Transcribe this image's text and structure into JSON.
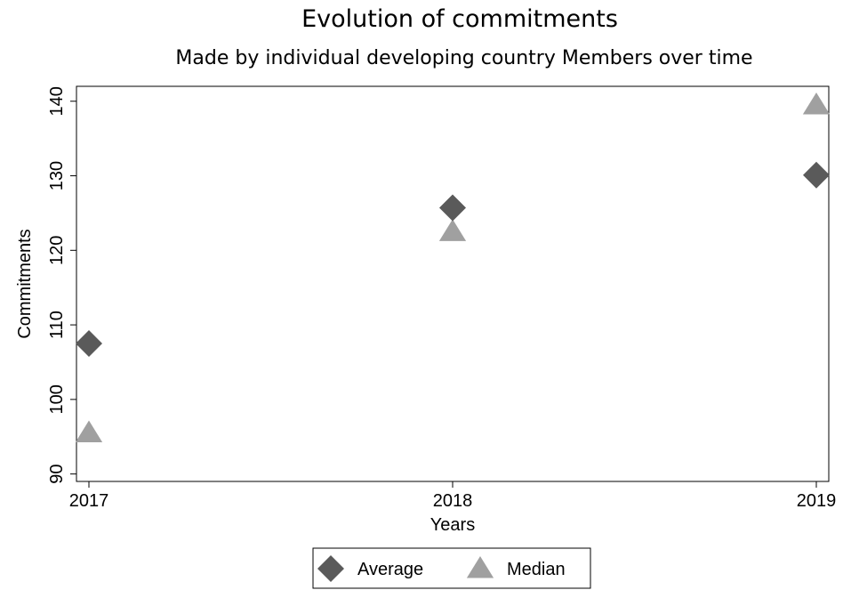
{
  "chart_data": {
    "type": "scatter",
    "title": "Evolution of commitments",
    "subtitle": "Made by individual developing country Members over time",
    "xlabel": "Years",
    "ylabel": "Commitments",
    "x": [
      2017,
      2018,
      2019
    ],
    "x_tick_labels": [
      "2017",
      "2018",
      "2019"
    ],
    "y_ticks": [
      90,
      100,
      110,
      120,
      130,
      140
    ],
    "y_tick_labels": [
      "90",
      "100",
      "110",
      "120",
      "130",
      "140"
    ],
    "xlim": [
      2017,
      2019
    ],
    "ylim": [
      89,
      142
    ],
    "grid": false,
    "legend_position": "bottom-center",
    "series": [
      {
        "name": "Average",
        "marker": "diamond",
        "color": "#5a5a5a",
        "values": [
          107.5,
          125.7,
          130.1
        ]
      },
      {
        "name": "Median",
        "marker": "triangle",
        "color": "#a0a0a0",
        "values": [
          95.5,
          122.5,
          139.5
        ]
      }
    ]
  }
}
